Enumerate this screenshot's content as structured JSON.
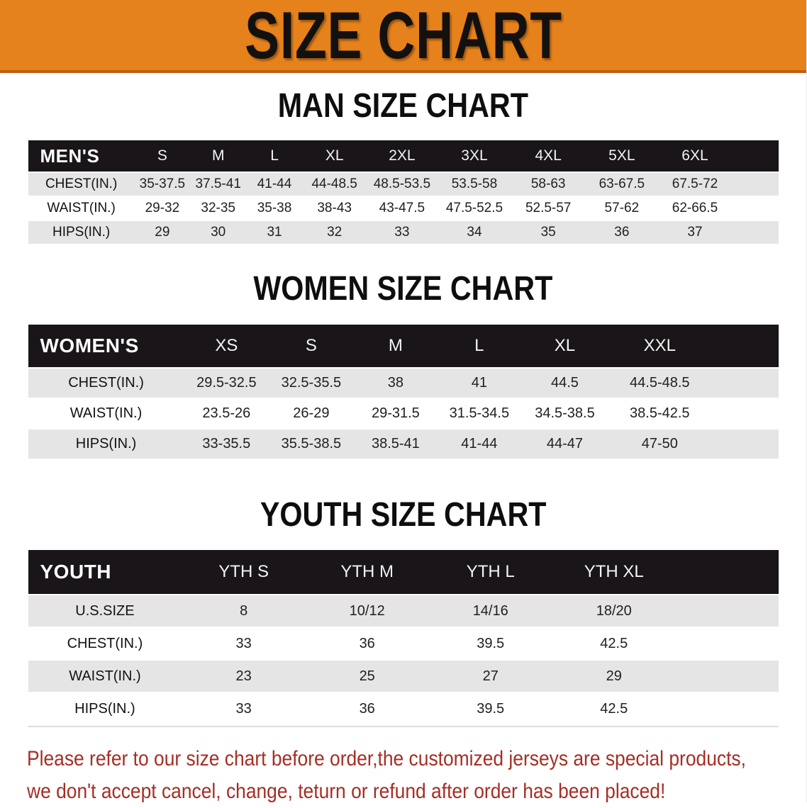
{
  "banner": {
    "title": "SIZE CHART",
    "bg_color": "#E6821B"
  },
  "sections": [
    {
      "heading": "MAN SIZE CHART",
      "table": {
        "label": "MEN'S",
        "columns": [
          "S",
          "M",
          "L",
          "XL",
          "2XL",
          "3XL",
          "4XL",
          "5XL",
          "6XL"
        ],
        "rows": [
          {
            "label": "CHEST(IN.)",
            "values": [
              "35-37.5",
              "37.5-41",
              "41-44",
              "44-48.5",
              "48.5-53.5",
              "53.5-58",
              "58-63",
              "63-67.5",
              "67.5-72"
            ]
          },
          {
            "label": "WAIST(IN.)",
            "values": [
              "29-32",
              "32-35",
              "35-38",
              "38-43",
              "43-47.5",
              "47.5-52.5",
              "52.5-57",
              "57-62",
              "62-66.5"
            ]
          },
          {
            "label": "HIPS(IN.)",
            "values": [
              "29",
              "30",
              "31",
              "32",
              "33",
              "34",
              "35",
              "36",
              "37"
            ]
          }
        ]
      }
    },
    {
      "heading": "WOMEN SIZE CHART",
      "table": {
        "label": "WOMEN'S",
        "columns": [
          "XS",
          "S",
          "M",
          "L",
          "XL",
          "XXL"
        ],
        "rows": [
          {
            "label": "CHEST(IN.)",
            "values": [
              "29.5-32.5",
              "32.5-35.5",
              "38",
              "41",
              "44.5",
              "44.5-48.5"
            ]
          },
          {
            "label": "WAIST(IN.)",
            "values": [
              "23.5-26",
              "26-29",
              "29-31.5",
              "31.5-34.5",
              "34.5-38.5",
              "38.5-42.5"
            ]
          },
          {
            "label": "HIPS(IN.)",
            "values": [
              "33-35.5",
              "35.5-38.5",
              "38.5-41",
              "41-44",
              "44-47",
              "47-50"
            ]
          }
        ]
      }
    },
    {
      "heading": "YOUTH SIZE CHART",
      "table": {
        "label": "YOUTH",
        "columns": [
          "YTH S",
          "YTH M",
          "YTH L",
          "YTH XL"
        ],
        "rows": [
          {
            "label": "U.S.SIZE",
            "values": [
              "8",
              "10/12",
              "14/16",
              "18/20"
            ]
          },
          {
            "label": "CHEST(IN.)",
            "values": [
              "33",
              "36",
              "39.5",
              "42.5"
            ]
          },
          {
            "label": "WAIST(IN.)",
            "values": [
              "23",
              "25",
              "27",
              "29"
            ]
          },
          {
            "label": "HIPS(IN.)",
            "values": [
              "33",
              "36",
              "39.5",
              "42.5"
            ]
          }
        ]
      }
    }
  ],
  "disclaimer": {
    "line1": "Please refer to our size chart before order,the customized jerseys are special products,",
    "line2": "we don't accept cancel, change, teturn or refund after order has been placed!",
    "color": "#A52E24"
  }
}
